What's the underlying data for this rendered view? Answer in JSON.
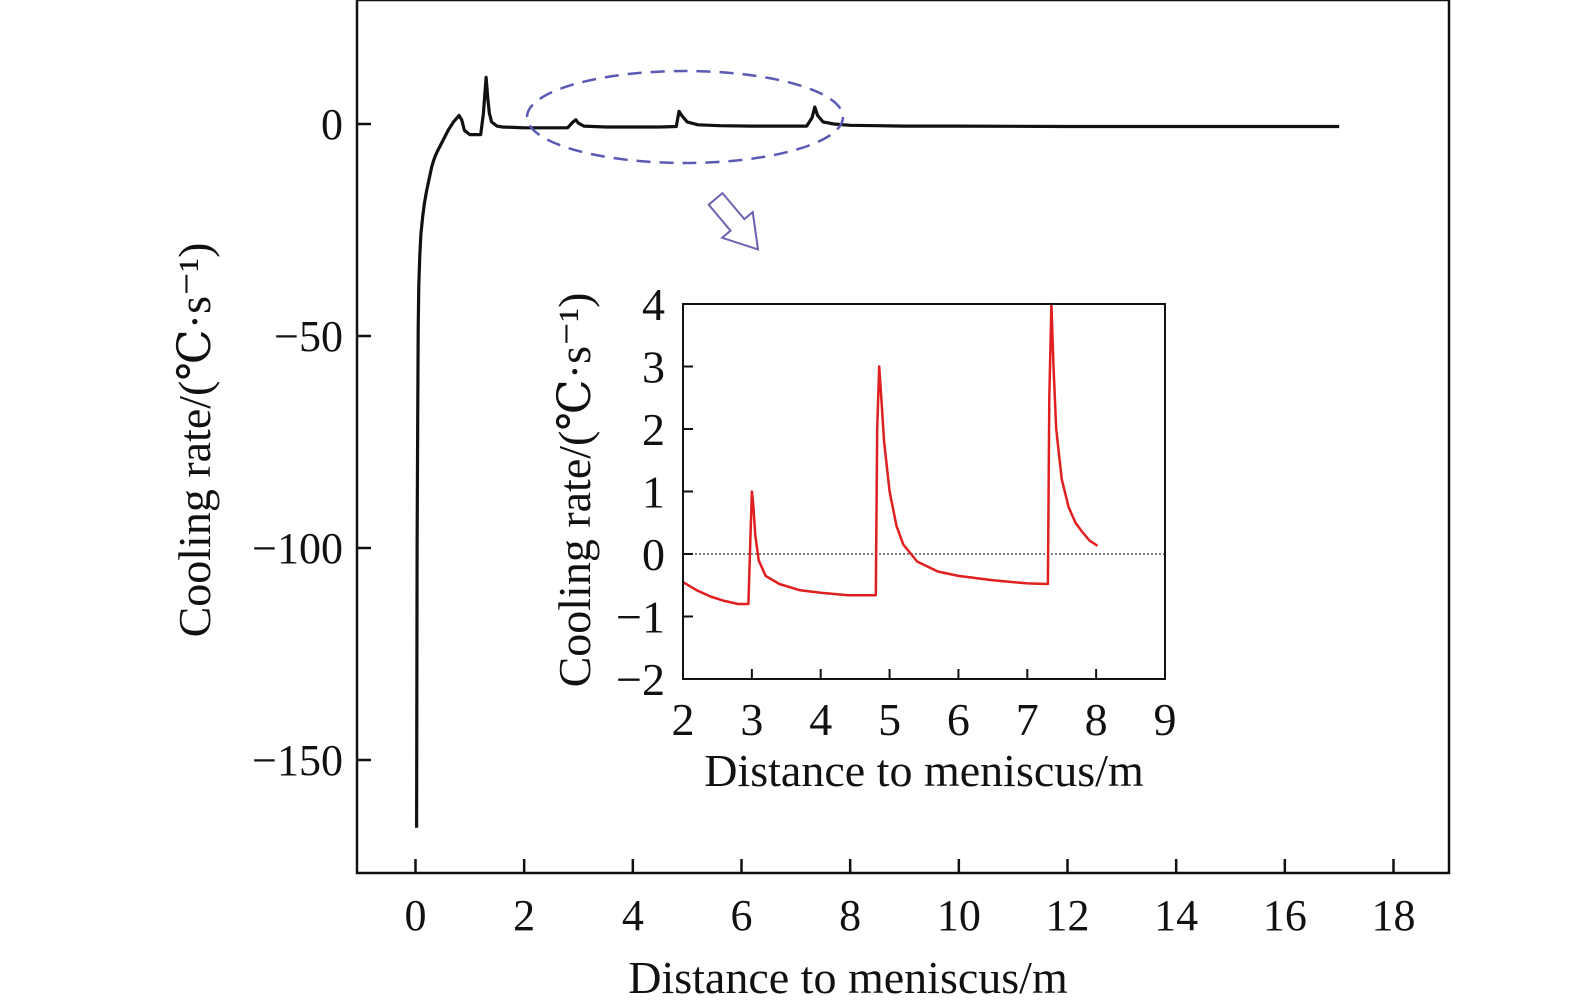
{
  "chart_data": [
    {
      "type": "line",
      "role": "main",
      "xlabel": "Distance to meniscus/m",
      "ylabel": "Cooling rate/(℃·s⁻¹)",
      "xlim": [
        -1,
        19
      ],
      "ylim": [
        -180,
        30
      ],
      "xticks": [
        0,
        2,
        4,
        6,
        8,
        10,
        12,
        14,
        16,
        18
      ],
      "yticks": [
        0,
        -50,
        -100,
        -150
      ],
      "ytick_labels": [
        "0",
        "−50",
        "−100",
        "−150"
      ],
      "grid": false,
      "color": "#111111",
      "series": [
        {
          "x": [
            0.02,
            0.03,
            0.04,
            0.05,
            0.06,
            0.08,
            0.1,
            0.13,
            0.16,
            0.2,
            0.25,
            0.3,
            0.35,
            0.4,
            0.5,
            0.6,
            0.7,
            0.8,
            0.85,
            0.9,
            1.0,
            1.1,
            1.2,
            1.25,
            1.3,
            1.33,
            1.36,
            1.4,
            1.5,
            1.6,
            1.8,
            2.0,
            2.4,
            2.8,
            2.9,
            2.95,
            3.0,
            3.1,
            3.5,
            4.0,
            4.5,
            4.8,
            4.85,
            4.9,
            5.0,
            5.2,
            5.6,
            6.2,
            6.8,
            7.2,
            7.3,
            7.35,
            7.4,
            7.5,
            7.7,
            8.0,
            8.5,
            9.0,
            10.0,
            12.0,
            14.0,
            16.0,
            17.0
          ],
          "y": [
            -166,
            -100,
            -70,
            -48,
            -38,
            -31,
            -26,
            -22,
            -19,
            -16,
            -13,
            -10,
            -8,
            -6.5,
            -4,
            -1.5,
            0.5,
            2.0,
            1.0,
            -1.5,
            -2.5,
            -2.5,
            -2.5,
            2.5,
            11.0,
            6.0,
            2.5,
            0.5,
            -0.5,
            -0.7,
            -0.8,
            -0.9,
            -0.9,
            -0.9,
            0.5,
            1.0,
            0.2,
            -0.5,
            -0.7,
            -0.7,
            -0.7,
            -0.6,
            3.0,
            2.0,
            0.5,
            -0.2,
            -0.4,
            -0.5,
            -0.5,
            -0.5,
            1.5,
            4.0,
            2.0,
            0.5,
            0.0,
            -0.3,
            -0.4,
            -0.5,
            -0.5,
            -0.6,
            -0.6,
            -0.6,
            -0.6
          ]
        }
      ],
      "highlight": {
        "shape": "dashed ellipse",
        "x_range": [
          2,
          8.5
        ],
        "color": "#5a5ab4"
      }
    },
    {
      "type": "line",
      "role": "inset",
      "xlabel": "Distance to meniscus/m",
      "ylabel": "Cooling rate/(℃·s⁻¹)",
      "xlim": [
        2,
        9
      ],
      "ylim": [
        -2,
        4
      ],
      "xticks": [
        2,
        3,
        4,
        5,
        6,
        7,
        8,
        9
      ],
      "yticks": [
        4,
        3,
        2,
        1,
        0,
        -1,
        -2
      ],
      "ytick_labels": [
        "4",
        "3",
        "2",
        "1",
        "0",
        "−1",
        "−2"
      ],
      "grid": false,
      "reference_line": {
        "y": 0,
        "style": "dotted"
      },
      "color": "#e02020",
      "series": [
        {
          "x": [
            2.0,
            2.2,
            2.4,
            2.6,
            2.8,
            2.95,
            2.98,
            3.0,
            3.02,
            3.05,
            3.1,
            3.2,
            3.4,
            3.7,
            4.0,
            4.4,
            4.8,
            4.82,
            4.85,
            4.88,
            4.92,
            5.0,
            5.1,
            5.2,
            5.4,
            5.7,
            6.0,
            6.5,
            7.0,
            7.3,
            7.32,
            7.35,
            7.38,
            7.42,
            7.5,
            7.6,
            7.7,
            7.8,
            7.9,
            8.02
          ],
          "y": [
            -0.45,
            -0.58,
            -0.68,
            -0.75,
            -0.8,
            -0.8,
            0.3,
            1.0,
            0.8,
            0.3,
            -0.1,
            -0.35,
            -0.48,
            -0.58,
            -0.62,
            -0.66,
            -0.66,
            2.0,
            3.0,
            2.5,
            1.8,
            1.0,
            0.45,
            0.15,
            -0.12,
            -0.28,
            -0.35,
            -0.42,
            -0.47,
            -0.48,
            2.5,
            4.0,
            3.0,
            2.0,
            1.2,
            0.75,
            0.5,
            0.35,
            0.22,
            0.13
          ]
        }
      ]
    }
  ]
}
